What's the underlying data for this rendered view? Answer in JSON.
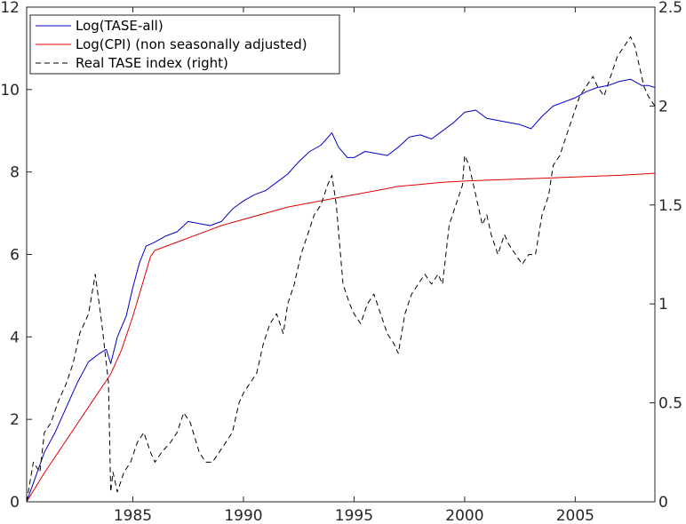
{
  "chart_data": {
    "type": "line",
    "title": "",
    "xlabel": "",
    "ylabel": "",
    "y2label": "",
    "xlim": [
      1980.2,
      2008.6
    ],
    "ylim_left": [
      0,
      12
    ],
    "ylim_right": [
      0,
      2.5
    ],
    "x_ticks": [
      1985,
      1990,
      1995,
      2000,
      2005
    ],
    "y_left_ticks": [
      0,
      2,
      4,
      6,
      8,
      10,
      12
    ],
    "y_right_ticks": [
      0,
      0.5,
      1,
      1.5,
      2,
      2.5
    ],
    "legend_position": "top-left",
    "grid": false,
    "series": [
      {
        "name": "Log(TASE-all)",
        "axis": "left",
        "color": "#0000c8",
        "style": "solid",
        "x": [
          1980.2,
          1980.6,
          1981.0,
          1981.5,
          1982.0,
          1982.5,
          1983.0,
          1983.5,
          1983.8,
          1984.0,
          1984.3,
          1984.7,
          1985.0,
          1985.3,
          1985.6,
          1986.0,
          1986.5,
          1987.0,
          1987.5,
          1988.0,
          1988.5,
          1989.0,
          1989.5,
          1990.0,
          1990.5,
          1991.0,
          1991.5,
          1992.0,
          1992.5,
          1993.0,
          1993.5,
          1994.0,
          1994.3,
          1994.7,
          1995.0,
          1995.5,
          1996.0,
          1996.5,
          1997.0,
          1997.5,
          1998.0,
          1998.5,
          1999.0,
          1999.5,
          2000.0,
          2000.5,
          2001.0,
          2001.5,
          2002.0,
          2002.5,
          2003.0,
          2003.5,
          2004.0,
          2004.5,
          2005.0,
          2005.5,
          2006.0,
          2006.5,
          2007.0,
          2007.5,
          2008.0,
          2008.3,
          2008.6
        ],
        "values": [
          0.0,
          0.6,
          1.2,
          1.7,
          2.3,
          2.9,
          3.4,
          3.6,
          3.7,
          3.35,
          4.0,
          4.5,
          5.2,
          5.8,
          6.2,
          6.3,
          6.45,
          6.55,
          6.8,
          6.75,
          6.7,
          6.8,
          7.1,
          7.3,
          7.45,
          7.55,
          7.75,
          7.95,
          8.25,
          8.5,
          8.65,
          8.95,
          8.6,
          8.35,
          8.35,
          8.5,
          8.45,
          8.4,
          8.6,
          8.85,
          8.9,
          8.8,
          9.0,
          9.2,
          9.45,
          9.5,
          9.3,
          9.25,
          9.2,
          9.15,
          9.05,
          9.35,
          9.6,
          9.7,
          9.8,
          9.95,
          10.05,
          10.1,
          10.2,
          10.25,
          10.1,
          10.1,
          10.05
        ]
      },
      {
        "name": "Log(CPI) (non seasonally adjusted)",
        "axis": "left",
        "color": "#e00000",
        "style": "solid",
        "x": [
          1980.2,
          1981.0,
          1982.0,
          1983.0,
          1984.0,
          1984.5,
          1985.0,
          1985.5,
          1985.8,
          1986.0,
          1987.0,
          1988.0,
          1989.0,
          1990.0,
          1991.0,
          1992.0,
          1993.0,
          1994.0,
          1995.0,
          1996.0,
          1997.0,
          1998.0,
          1999.0,
          2000.0,
          2001.0,
          2002.0,
          2003.0,
          2004.0,
          2005.0,
          2006.0,
          2007.0,
          2008.0,
          2008.6
        ],
        "values": [
          0.0,
          0.7,
          1.5,
          2.3,
          3.1,
          3.7,
          4.5,
          5.4,
          5.95,
          6.1,
          6.3,
          6.5,
          6.7,
          6.85,
          7.0,
          7.15,
          7.25,
          7.35,
          7.45,
          7.55,
          7.65,
          7.7,
          7.75,
          7.78,
          7.8,
          7.82,
          7.84,
          7.86,
          7.88,
          7.9,
          7.92,
          7.95,
          7.97
        ]
      },
      {
        "name": "Real TASE index (right)",
        "axis": "right",
        "color": "#000000",
        "style": "dashed",
        "x": [
          1980.2,
          1980.5,
          1980.8,
          1981.0,
          1981.3,
          1981.6,
          1982.0,
          1982.3,
          1982.6,
          1983.0,
          1983.3,
          1983.6,
          1983.9,
          1984.0,
          1984.1,
          1984.3,
          1984.6,
          1984.9,
          1985.2,
          1985.5,
          1985.8,
          1986.0,
          1986.3,
          1986.7,
          1987.0,
          1987.3,
          1987.6,
          1988.0,
          1988.3,
          1988.6,
          1988.9,
          1989.2,
          1989.5,
          1989.8,
          1990.0,
          1990.3,
          1990.6,
          1990.9,
          1991.2,
          1991.5,
          1991.8,
          1992.0,
          1992.3,
          1992.6,
          1992.9,
          1993.2,
          1993.5,
          1993.8,
          1994.0,
          1994.2,
          1994.5,
          1994.8,
          1995.0,
          1995.3,
          1995.6,
          1995.9,
          1996.2,
          1996.5,
          1996.8,
          1997.0,
          1997.3,
          1997.6,
          1997.9,
          1998.2,
          1998.5,
          1998.8,
          1999.0,
          1999.3,
          1999.6,
          1999.9,
          2000.0,
          2000.2,
          2000.5,
          2000.8,
          2001.0,
          2001.2,
          2001.5,
          2001.8,
          2002.0,
          2002.3,
          2002.6,
          2002.9,
          2003.2,
          2003.5,
          2003.8,
          2004.0,
          2004.3,
          2004.6,
          2004.9,
          2005.2,
          2005.5,
          2005.8,
          2006.0,
          2006.3,
          2006.6,
          2006.9,
          2007.2,
          2007.5,
          2007.7,
          2007.9,
          2008.1,
          2008.3,
          2008.6
        ],
        "values": [
          0.0,
          0.2,
          0.15,
          0.35,
          0.4,
          0.5,
          0.6,
          0.7,
          0.85,
          0.95,
          1.15,
          0.9,
          0.6,
          0.05,
          0.15,
          0.05,
          0.15,
          0.2,
          0.3,
          0.35,
          0.25,
          0.2,
          0.25,
          0.3,
          0.35,
          0.45,
          0.4,
          0.25,
          0.2,
          0.2,
          0.25,
          0.3,
          0.35,
          0.5,
          0.55,
          0.6,
          0.65,
          0.8,
          0.9,
          0.95,
          0.85,
          1.0,
          1.1,
          1.25,
          1.35,
          1.45,
          1.5,
          1.6,
          1.65,
          1.5,
          1.1,
          1.0,
          0.95,
          0.9,
          1.0,
          1.05,
          0.95,
          0.85,
          0.8,
          0.75,
          0.95,
          1.05,
          1.1,
          1.15,
          1.1,
          1.15,
          1.1,
          1.4,
          1.5,
          1.6,
          1.75,
          1.7,
          1.55,
          1.4,
          1.45,
          1.35,
          1.25,
          1.35,
          1.3,
          1.25,
          1.2,
          1.25,
          1.25,
          1.45,
          1.55,
          1.7,
          1.75,
          1.85,
          1.95,
          2.05,
          2.1,
          2.15,
          2.1,
          2.05,
          2.15,
          2.25,
          2.3,
          2.35,
          2.3,
          2.2,
          2.1,
          2.05,
          2.0
        ]
      }
    ]
  }
}
